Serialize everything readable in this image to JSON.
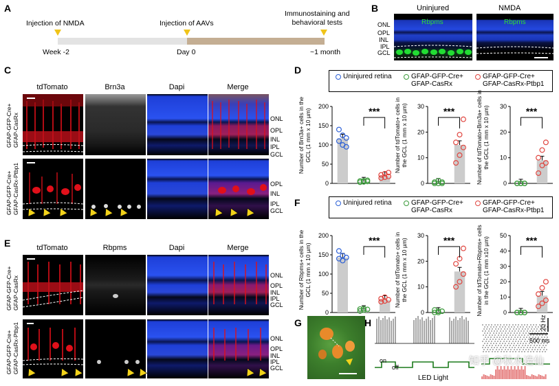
{
  "panels": {
    "A": "A",
    "B": "B",
    "C": "C",
    "D": "D",
    "E": "E",
    "F": "F",
    "G": "G",
    "H": "H"
  },
  "timeline": {
    "events": [
      "Injection of NMDA",
      "Injection of AAVs",
      "Immunostaining and\nbehavioral tests"
    ],
    "times": [
      "Week -2",
      "Day 0",
      "~1 month"
    ]
  },
  "panelB": {
    "conditions": [
      "Uninjured",
      "NMDA"
    ],
    "stain": "Rbpms",
    "layers": [
      "ONL",
      "OPL",
      "INL",
      "IPL",
      "GCL"
    ]
  },
  "panelC": {
    "columns": [
      "tdTomato",
      "Brn3a",
      "Dapi",
      "Merge"
    ],
    "rows": [
      "GFAP-GFP-Cre+\nGFAP-CasRx",
      "GFAP-GFP-Cre+\nGFAP-CasRx-Ptbp1"
    ],
    "layers": [
      "ONL",
      "OPL",
      "INL",
      "IPL",
      "GCL"
    ]
  },
  "panelE": {
    "columns": [
      "tdTomato",
      "Rbpms",
      "Dapi",
      "Merge"
    ],
    "rows": [
      "GFAP-GFP-Cre+\nGFAP-CasRx",
      "GFAP-GFP-Cre+\nGFAP-CasRx-Ptbp1"
    ],
    "layers": [
      "ONL",
      "OPL",
      "INL",
      "IPL",
      "GCL"
    ]
  },
  "legend": {
    "items": [
      "Uninjured retina",
      "GFAP-GFP-Cre+\nGFAP-CasRx",
      "GFAP-GFP-Cre+\nGFAP-CasRx-Ptbp1"
    ],
    "colors": {
      "uninjured": "#2b5fd6",
      "casrx": "#3a9a3a",
      "ptbp1": "#e0443e",
      "bar": "#cccccc"
    }
  },
  "significance": "***",
  "chart_data": [
    {
      "panel": "D",
      "type": "bar",
      "ylabel": "Number of Brn3a+ cells in the GCL (1 mm x 10 µm)",
      "ylim": [
        0,
        200
      ],
      "yticks": [
        0,
        50,
        100,
        150,
        200
      ],
      "categories": [
        "Uninjured retina",
        "GFAP-GFP-Cre+ GFAP-CasRx",
        "GFAP-GFP-Cre+ GFAP-CasRx-Ptbp1"
      ],
      "values": [
        117,
        5,
        19
      ],
      "points": [
        [
          140,
          125,
          118,
          110,
          100,
          95
        ],
        [
          3,
          4,
          5,
          6,
          7,
          8
        ],
        [
          14,
          16,
          18,
          22,
          25,
          28
        ]
      ]
    },
    {
      "panel": "D",
      "type": "bar",
      "ylabel": "Number of tdTomato+ cells in the GCL (1 mm x 10 µm)",
      "ylim": [
        0,
        30
      ],
      "yticks": [
        0,
        10,
        20,
        30
      ],
      "categories": [
        "GFAP-GFP-Cre+ GFAP-CasRx",
        "GFAP-GFP-Cre+ GFAP-CasRx-Ptbp1"
      ],
      "values": [
        0.3,
        15
      ],
      "points": [
        [
          0,
          0,
          0,
          0.5,
          1,
          0.5
        ],
        [
          8,
          11,
          14,
          16,
          19,
          25
        ]
      ]
    },
    {
      "panel": "D",
      "type": "bar",
      "ylabel": "Number of tdTomato+Brn3a+ cells in the GCL (1 mm x 10 µm)",
      "ylim": [
        0,
        30
      ],
      "yticks": [
        0,
        10,
        20,
        30
      ],
      "categories": [
        "GFAP-GFP-Cre+ GFAP-CasRx",
        "GFAP-GFP-Cre+ GFAP-CasRx-Ptbp1"
      ],
      "values": [
        0,
        9
      ],
      "points": [
        [
          0,
          0,
          0,
          0,
          0,
          0
        ],
        [
          4,
          7,
          8,
          10,
          13,
          16
        ]
      ]
    },
    {
      "panel": "F",
      "type": "bar",
      "ylabel": "Number of Rbpms+ cells in the GCL (1 mm x 10 µm)",
      "ylim": [
        0,
        200
      ],
      "yticks": [
        0,
        50,
        100,
        150,
        200
      ],
      "categories": [
        "Uninjured retina",
        "GFAP-GFP-Cre+ GFAP-CasRx",
        "GFAP-GFP-Cre+ GFAP-CasRx-Ptbp1"
      ],
      "values": [
        143,
        7,
        33
      ],
      "points": [
        [
          160,
          148,
          143,
          140,
          135
        ],
        [
          4,
          6,
          8,
          9,
          10
        ],
        [
          28,
          30,
          33,
          36,
          40
        ]
      ]
    },
    {
      "panel": "F",
      "type": "bar",
      "ylabel": "Number of tdTomato+ cells in the GCL (1 mm x 10 µm)",
      "ylim": [
        0,
        30
      ],
      "yticks": [
        0,
        10,
        20,
        30
      ],
      "categories": [
        "GFAP-GFP-Cre+ GFAP-CasRx",
        "GFAP-GFP-Cre+ GFAP-CasRx-Ptbp1"
      ],
      "values": [
        0.3,
        16
      ],
      "points": [
        [
          0,
          0,
          0.5,
          1,
          0.5
        ],
        [
          10,
          12,
          15,
          19,
          21,
          25
        ]
      ]
    },
    {
      "panel": "F",
      "type": "bar",
      "ylabel": "Number of tdTomato+Rbpms+ cells in the GCL (1 mm x10 µm)",
      "ylim": [
        0,
        50
      ],
      "yticks": [
        0,
        10,
        20,
        30,
        40,
        50
      ],
      "categories": [
        "GFAP-GFP-Cre+ GFAP-CasRx",
        "GFAP-GFP-Cre+ GFAP-CasRx-Ptbp1"
      ],
      "values": [
        0,
        11
      ],
      "points": [
        [
          0,
          0,
          0,
          0,
          0,
          0
        ],
        [
          4,
          6,
          8,
          12,
          16,
          20
        ]
      ]
    }
  ],
  "panelH": {
    "stim_on": "on",
    "stim_off": "off",
    "stimulus": "LED Light",
    "scale_hz": "20 Hz",
    "scale_ms": "500 ms"
  },
  "watermark": "知乎 @秋水选仙"
}
